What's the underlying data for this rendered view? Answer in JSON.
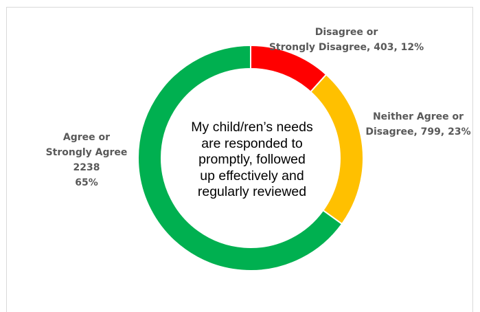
{
  "chart_data": {
    "type": "pie",
    "variant": "donut",
    "start_angle_deg": 0,
    "direction": "clockwise",
    "center_title_lines": [
      "My child/ren’s needs",
      "are responded to",
      "promptly, followed",
      "up effectively and",
      "regularly reviewed"
    ],
    "slices": [
      {
        "key": "disagree",
        "value": 403,
        "percent": 12,
        "color": "#ff0000",
        "label_lines": [
          "Disagree or",
          "Strongly Disagree, 403, 12%"
        ]
      },
      {
        "key": "neither",
        "value": 799,
        "percent": 23,
        "color": "#ffc000",
        "label_lines": [
          "Neither Agree or",
          "Disagree, 799, 23%"
        ]
      },
      {
        "key": "agree",
        "value": 2238,
        "percent": 65,
        "color": "#00b050",
        "label_lines": [
          "Agree or",
          "Strongly Agree",
          "2238",
          "65%"
        ]
      }
    ],
    "legend": "none",
    "grid": false
  }
}
